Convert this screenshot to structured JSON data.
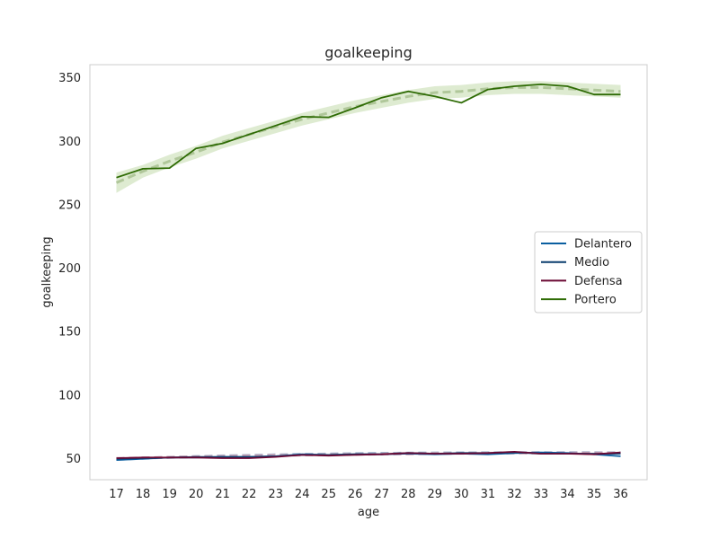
{
  "chart_data": {
    "type": "line",
    "title": "goalkeeping",
    "xlabel": "age",
    "ylabel": "goalkeeping",
    "x": [
      17,
      18,
      19,
      20,
      21,
      22,
      23,
      24,
      25,
      26,
      27,
      28,
      29,
      30,
      31,
      32,
      33,
      34,
      35,
      36
    ],
    "xlim": [
      16,
      37
    ],
    "ylim": [
      33,
      360
    ],
    "yticks": [
      50,
      100,
      150,
      200,
      250,
      300,
      350
    ],
    "grid": false,
    "legend_position": "center-right",
    "series": [
      {
        "name": "Delantero",
        "color": "#0b5fa0",
        "values": [
          48.5,
          49.5,
          50.5,
          50.5,
          51,
          51,
          51.5,
          53,
          52.5,
          53,
          53,
          53.5,
          53,
          53.5,
          53,
          54,
          54.5,
          54,
          53,
          51.5
        ],
        "trend": [
          49,
          49.8,
          50.6,
          51.2,
          51.8,
          52.2,
          52.6,
          53,
          53.3,
          53.6,
          53.8,
          54,
          54.1,
          54.2,
          54.3,
          54.4,
          54.4,
          54.4,
          54.4,
          54.3
        ],
        "trend_color": "#a7c5e0"
      },
      {
        "name": "Medio",
        "color": "#0a3d6e",
        "values": [
          49.5,
          50,
          50.5,
          51,
          51,
          51,
          51.5,
          52.5,
          52.5,
          53,
          53,
          54,
          53.5,
          54,
          54,
          54.5,
          53.5,
          53.5,
          53.5,
          53.5
        ],
        "trend": [
          49.5,
          50.1,
          50.7,
          51.2,
          51.7,
          52.1,
          52.5,
          52.9,
          53.2,
          53.5,
          53.7,
          53.9,
          54,
          54.1,
          54.2,
          54.2,
          54.2,
          54.1,
          54,
          53.9
        ],
        "trend_color": "#9fb3c9"
      },
      {
        "name": "Defensa",
        "color": "#6b0a34",
        "values": [
          50,
          50.5,
          50.5,
          50.5,
          50,
          50,
          51,
          52.5,
          52,
          52.5,
          53,
          54,
          53.5,
          53.5,
          54,
          55,
          53.5,
          53.5,
          53,
          54.5
        ],
        "trend": [
          49.8,
          50.2,
          50.6,
          51,
          51.4,
          51.8,
          52.1,
          52.4,
          52.7,
          53,
          53.2,
          53.4,
          53.6,
          53.8,
          53.9,
          54,
          54.1,
          54.1,
          54.1,
          54.1
        ],
        "trend_color": "#c9a0b3"
      },
      {
        "name": "Portero",
        "color": "#2e6b04",
        "values": [
          271,
          278,
          278.5,
          294,
          298,
          305,
          312,
          319,
          318.5,
          326,
          334,
          339,
          335,
          330,
          340.5,
          343,
          344.5,
          343,
          336.5,
          336.5
        ],
        "trend": [
          267,
          276,
          284,
          291,
          299,
          305,
          311,
          317,
          322,
          327,
          331,
          335,
          338,
          339,
          341,
          342,
          342,
          341,
          340,
          339
        ],
        "trend_color": "#b0c79a",
        "band_color": "#d6e6c6",
        "band_width": 5
      }
    ]
  }
}
